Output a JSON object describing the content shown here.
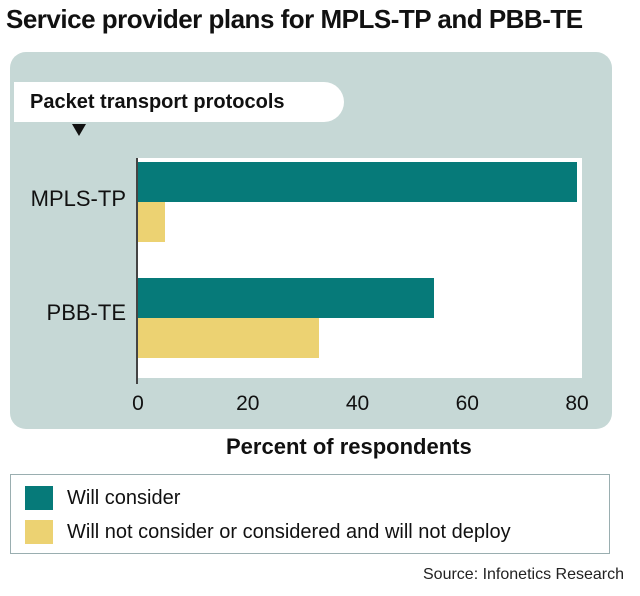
{
  "title": "Service provider plans for MPLS-TP and PBB-TE",
  "category_header": "Packet transport protocols",
  "source": "Source: Infonetics Research",
  "colors": {
    "will_consider": "#067a79",
    "will_not": "#ecd272",
    "panel_bg": "#c6d8d6"
  },
  "chart_data": {
    "type": "bar",
    "orientation": "horizontal",
    "title": "Service provider plans for MPLS-TP and PBB-TE",
    "ylabel": "Packet transport protocols",
    "xlabel": "Percent of respondents",
    "categories": [
      "MPLS-TP",
      "PBB-TE"
    ],
    "series": [
      {
        "name": "Will consider",
        "values": [
          80,
          54
        ]
      },
      {
        "name": "Will not consider or considered and will not deploy",
        "values": [
          5,
          33
        ]
      }
    ],
    "xlim": [
      0,
      80
    ],
    "xticks": [
      "0",
      "20",
      "40",
      "60",
      "80"
    ],
    "legend": "bottom",
    "grid": false
  }
}
